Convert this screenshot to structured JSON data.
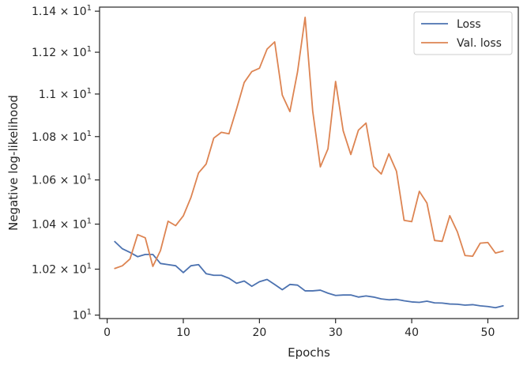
{
  "chart_data": {
    "type": "line",
    "xlabel": "Epochs",
    "ylabel": "Negative log-likelihood",
    "xlim": [
      -1,
      54
    ],
    "ylim": [
      9.985,
      11.42
    ],
    "y_scale": "log",
    "grid": false,
    "legend_position": "top-right",
    "x_ticks": [
      0,
      10,
      20,
      30,
      40,
      50
    ],
    "x_tick_labels": [
      "0",
      "10",
      "20",
      "30",
      "40",
      "50"
    ],
    "y_ticks": [
      10.0,
      10.2,
      10.4,
      10.6,
      10.8,
      11.0,
      11.2,
      11.4
    ],
    "y_tick_labels": [
      {
        "mantissa": "",
        "base": "10",
        "exp": "1"
      },
      {
        "mantissa": "1.02 × ",
        "base": "10",
        "exp": "1"
      },
      {
        "mantissa": "1.04 × ",
        "base": "10",
        "exp": "1"
      },
      {
        "mantissa": "1.06 × ",
        "base": "10",
        "exp": "1"
      },
      {
        "mantissa": "1.08 × ",
        "base": "10",
        "exp": "1"
      },
      {
        "mantissa": "1.1 × ",
        "base": "10",
        "exp": "1"
      },
      {
        "mantissa": "1.12 × ",
        "base": "10",
        "exp": "1"
      },
      {
        "mantissa": "1.14 × ",
        "base": "10",
        "exp": "1"
      }
    ],
    "x": [
      1,
      2,
      3,
      4,
      5,
      6,
      7,
      8,
      9,
      10,
      11,
      12,
      13,
      14,
      15,
      16,
      17,
      18,
      19,
      20,
      21,
      22,
      23,
      24,
      25,
      26,
      27,
      28,
      29,
      30,
      31,
      32,
      33,
      34,
      35,
      36,
      37,
      38,
      39,
      40,
      41,
      42,
      43,
      44,
      45,
      46,
      47,
      48,
      49,
      50,
      51,
      52
    ],
    "series": [
      {
        "name": "Loss",
        "color": "#4c72b0",
        "values": [
          10.322,
          10.29,
          10.274,
          10.255,
          10.265,
          10.265,
          10.225,
          10.22,
          10.215,
          10.185,
          10.215,
          10.22,
          10.18,
          10.173,
          10.173,
          10.16,
          10.138,
          10.148,
          10.125,
          10.145,
          10.155,
          10.133,
          10.11,
          10.133,
          10.13,
          10.105,
          10.105,
          10.108,
          10.095,
          10.085,
          10.087,
          10.087,
          10.078,
          10.083,
          10.078,
          10.07,
          10.066,
          10.068,
          10.062,
          10.057,
          10.055,
          10.06,
          10.053,
          10.052,
          10.048,
          10.047,
          10.043,
          10.045,
          10.04,
          10.037,
          10.032,
          10.04
        ]
      },
      {
        "name": "Val. loss",
        "color": "#dd8452",
        "values": [
          10.203,
          10.215,
          10.245,
          10.353,
          10.339,
          10.212,
          10.282,
          10.413,
          10.393,
          10.437,
          10.52,
          10.632,
          10.673,
          10.793,
          10.82,
          10.813,
          10.93,
          11.055,
          11.107,
          11.123,
          11.215,
          11.25,
          10.995,
          10.917,
          11.105,
          11.37,
          10.918,
          10.66,
          10.743,
          11.06,
          10.827,
          10.717,
          10.83,
          10.863,
          10.662,
          10.627,
          10.72,
          10.64,
          10.417,
          10.411,
          10.548,
          10.495,
          10.327,
          10.323,
          10.438,
          10.365,
          10.26,
          10.257,
          10.315,
          10.318,
          10.271,
          10.28
        ]
      }
    ]
  }
}
